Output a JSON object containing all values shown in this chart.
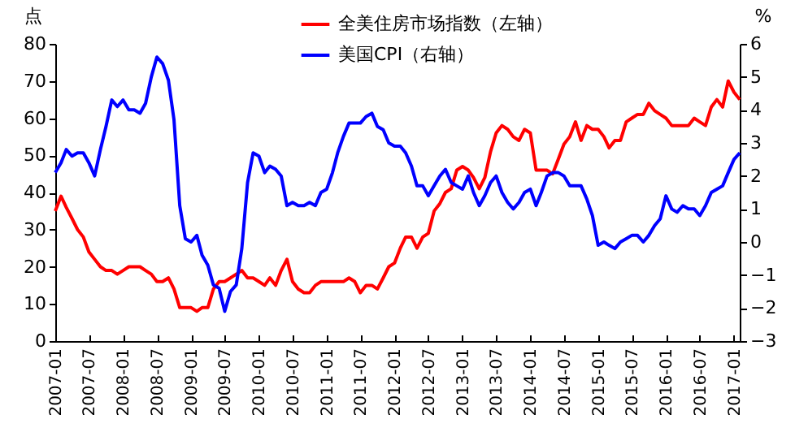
{
  "chart_data": {
    "type": "line",
    "ylabel": "点",
    "y2label": "%",
    "x": [
      "2007-01",
      "2007-02",
      "2007-03",
      "2007-04",
      "2007-05",
      "2007-06",
      "2007-07",
      "2007-08",
      "2007-09",
      "2007-10",
      "2007-11",
      "2007-12",
      "2008-01",
      "2008-02",
      "2008-03",
      "2008-04",
      "2008-05",
      "2008-06",
      "2008-07",
      "2008-08",
      "2008-09",
      "2008-10",
      "2008-11",
      "2008-12",
      "2009-01",
      "2009-02",
      "2009-03",
      "2009-04",
      "2009-05",
      "2009-06",
      "2009-07",
      "2009-08",
      "2009-09",
      "2009-10",
      "2009-11",
      "2009-12",
      "2010-01",
      "2010-02",
      "2010-03",
      "2010-04",
      "2010-05",
      "2010-06",
      "2010-07",
      "2010-08",
      "2010-09",
      "2010-10",
      "2010-11",
      "2010-12",
      "2011-01",
      "2011-02",
      "2011-03",
      "2011-04",
      "2011-05",
      "2011-06",
      "2011-07",
      "2011-08",
      "2011-09",
      "2011-10",
      "2011-11",
      "2011-12",
      "2012-01",
      "2012-02",
      "2012-03",
      "2012-04",
      "2012-05",
      "2012-06",
      "2012-07",
      "2012-08",
      "2012-09",
      "2012-10",
      "2012-11",
      "2012-12",
      "2013-01",
      "2013-02",
      "2013-03",
      "2013-04",
      "2013-05",
      "2013-06",
      "2013-07",
      "2013-08",
      "2013-09",
      "2013-10",
      "2013-11",
      "2013-12",
      "2014-01",
      "2014-02",
      "2014-03",
      "2014-04",
      "2014-05",
      "2014-06",
      "2014-07",
      "2014-08",
      "2014-09",
      "2014-10",
      "2014-11",
      "2014-12",
      "2015-01",
      "2015-02",
      "2015-03",
      "2015-04",
      "2015-05",
      "2015-06",
      "2015-07",
      "2015-08",
      "2015-09",
      "2015-10",
      "2015-11",
      "2015-12",
      "2016-01",
      "2016-02",
      "2016-03",
      "2016-04",
      "2016-05",
      "2016-06",
      "2016-07",
      "2016-08",
      "2016-09",
      "2016-10",
      "2016-11",
      "2016-12",
      "2017-01",
      "2017-02"
    ],
    "series": [
      {
        "name": "全美住房市场指数（左轴）",
        "color": "#ff0000",
        "values": [
          35,
          39,
          36,
          33,
          30,
          28,
          24,
          22,
          20,
          19,
          19,
          18,
          19,
          20,
          20,
          20,
          19,
          18,
          16,
          16,
          17,
          14,
          9,
          9,
          9,
          8,
          9,
          9,
          14,
          16,
          16,
          17,
          18,
          19,
          17,
          17,
          16,
          15,
          17,
          15,
          19,
          22,
          16,
          14,
          13,
          13,
          15,
          16,
          16,
          16,
          16,
          16,
          17,
          16,
          13,
          15,
          15,
          14,
          17,
          20,
          21,
          25,
          28,
          28,
          25,
          28,
          29,
          35,
          37,
          40,
          41,
          46,
          47,
          46,
          44,
          41,
          44,
          51,
          56,
          58,
          57,
          55,
          54,
          57,
          56,
          46,
          46,
          46,
          45,
          49,
          53,
          55,
          59,
          54,
          58,
          57,
          57,
          55,
          52,
          54,
          54,
          59,
          60,
          61,
          61,
          64,
          62,
          61,
          60,
          58,
          58,
          58,
          58,
          60,
          59,
          58,
          63,
          65,
          63,
          70,
          67,
          65
        ]
      },
      {
        "name": "美国CPI（右轴）",
        "color": "#0000ff",
        "axis": "y2",
        "values": [
          2.1,
          2.4,
          2.8,
          2.6,
          2.7,
          2.7,
          2.4,
          2.0,
          2.8,
          3.5,
          4.3,
          4.1,
          4.3,
          4.0,
          4.0,
          3.9,
          4.2,
          5.0,
          5.6,
          5.4,
          4.9,
          3.7,
          1.1,
          0.1,
          0.0,
          0.2,
          -0.4,
          -0.7,
          -1.3,
          -1.4,
          -2.1,
          -1.5,
          -1.3,
          -0.2,
          1.8,
          2.7,
          2.6,
          2.1,
          2.3,
          2.2,
          2.0,
          1.1,
          1.2,
          1.1,
          1.1,
          1.2,
          1.1,
          1.5,
          1.6,
          2.1,
          2.7,
          3.2,
          3.6,
          3.6,
          3.6,
          3.8,
          3.9,
          3.5,
          3.4,
          3.0,
          2.9,
          2.9,
          2.7,
          2.3,
          1.7,
          1.7,
          1.4,
          1.7,
          2.0,
          2.2,
          1.8,
          1.7,
          1.6,
          2.0,
          1.5,
          1.1,
          1.4,
          1.8,
          2.0,
          1.5,
          1.2,
          1.0,
          1.2,
          1.5,
          1.6,
          1.1,
          1.5,
          2.0,
          2.1,
          2.1,
          2.0,
          1.7,
          1.7,
          1.7,
          1.3,
          0.8,
          -0.1,
          0.0,
          -0.1,
          -0.2,
          0.0,
          0.1,
          0.2,
          0.2,
          0.0,
          0.2,
          0.5,
          0.7,
          1.4,
          1.0,
          0.9,
          1.1,
          1.0,
          1.0,
          0.8,
          1.1,
          1.5,
          1.6,
          1.7,
          2.1,
          2.5,
          2.7
        ]
      }
    ],
    "xlim": [
      "2007-01",
      "2017-02"
    ],
    "xticks": [
      "2007-01",
      "2007-07",
      "2008-01",
      "2008-07",
      "2009-01",
      "2009-07",
      "2010-01",
      "2010-07",
      "2011-01",
      "2011-07",
      "2012-01",
      "2012-07",
      "2013-01",
      "2013-07",
      "2014-01",
      "2014-07",
      "2015-01",
      "2015-07",
      "2016-01",
      "2016-07",
      "2017-01"
    ],
    "ylim": [
      0,
      80
    ],
    "yticks": [
      0,
      10,
      20,
      30,
      40,
      50,
      60,
      70,
      80
    ],
    "y2lim": [
      -3,
      6
    ],
    "y2ticks": [
      -3,
      -2,
      -1,
      0,
      1,
      2,
      3,
      4,
      5,
      6
    ],
    "grid": false,
    "legend": "top",
    "line_style": "solid",
    "marker": "none"
  }
}
